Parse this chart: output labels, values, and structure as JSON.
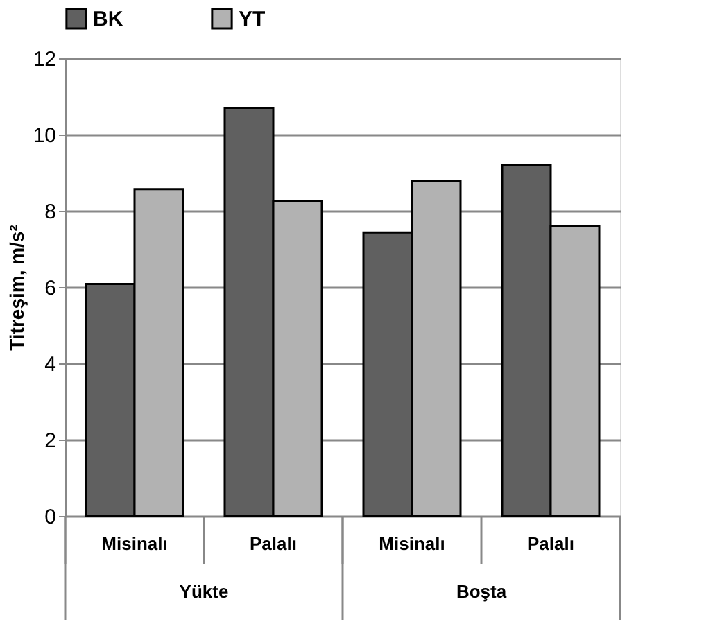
{
  "chart_data": {
    "type": "bar",
    "ylabel": "Titreşim, m/s²",
    "categories": [
      "Misinalı",
      "Palalı",
      "Misinalı",
      "Palalı"
    ],
    "series": [
      {
        "name": "BK",
        "color": "#606060",
        "values": [
          6.08,
          10.7,
          7.43,
          9.19
        ]
      },
      {
        "name": "YT",
        "color": "#b2b2b2",
        "values": [
          8.57,
          8.25,
          8.78,
          7.59
        ]
      }
    ],
    "ylim": [
      0,
      12
    ],
    "yticks": [
      0,
      2,
      4,
      6,
      8,
      10,
      12
    ],
    "grid": "y",
    "legend": "top",
    "annotations": [
      "Yükte",
      "Boşta"
    ]
  }
}
